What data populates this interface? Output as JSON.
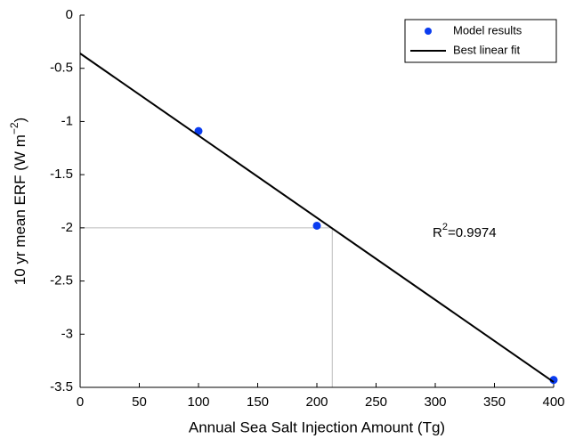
{
  "chart_data": {
    "type": "scatter",
    "xlabel": "Annual Sea Salt Injection Amount (Tg)",
    "ylabel": "10 yr mean ERF (W m",
    "ylabel_sup": "−2",
    "ylabel_end": ")",
    "annotation": "R",
    "annotation_sup": "2",
    "annotation_end": "=0.9974",
    "xlim": [
      0,
      400
    ],
    "ylim": [
      -3.5,
      0
    ],
    "xticks": [
      0,
      50,
      100,
      150,
      200,
      250,
      300,
      350,
      400
    ],
    "yticks": [
      -3.5,
      -3,
      -2.5,
      -2,
      -1.5,
      -1,
      -0.5,
      0
    ],
    "series": [
      {
        "name": "Model results",
        "color": "#0a3cf0",
        "x": [
          100,
          200,
          400
        ],
        "values": [
          -1.09,
          -1.98,
          -3.43
        ]
      },
      {
        "name": "Best linear fit",
        "color": "#000000",
        "x": [
          0,
          400
        ],
        "values": [
          -0.36,
          -3.45
        ]
      }
    ],
    "reference": {
      "x": 213,
      "y": -2,
      "color": "#bbbbbb"
    },
    "legend": "upper right"
  }
}
